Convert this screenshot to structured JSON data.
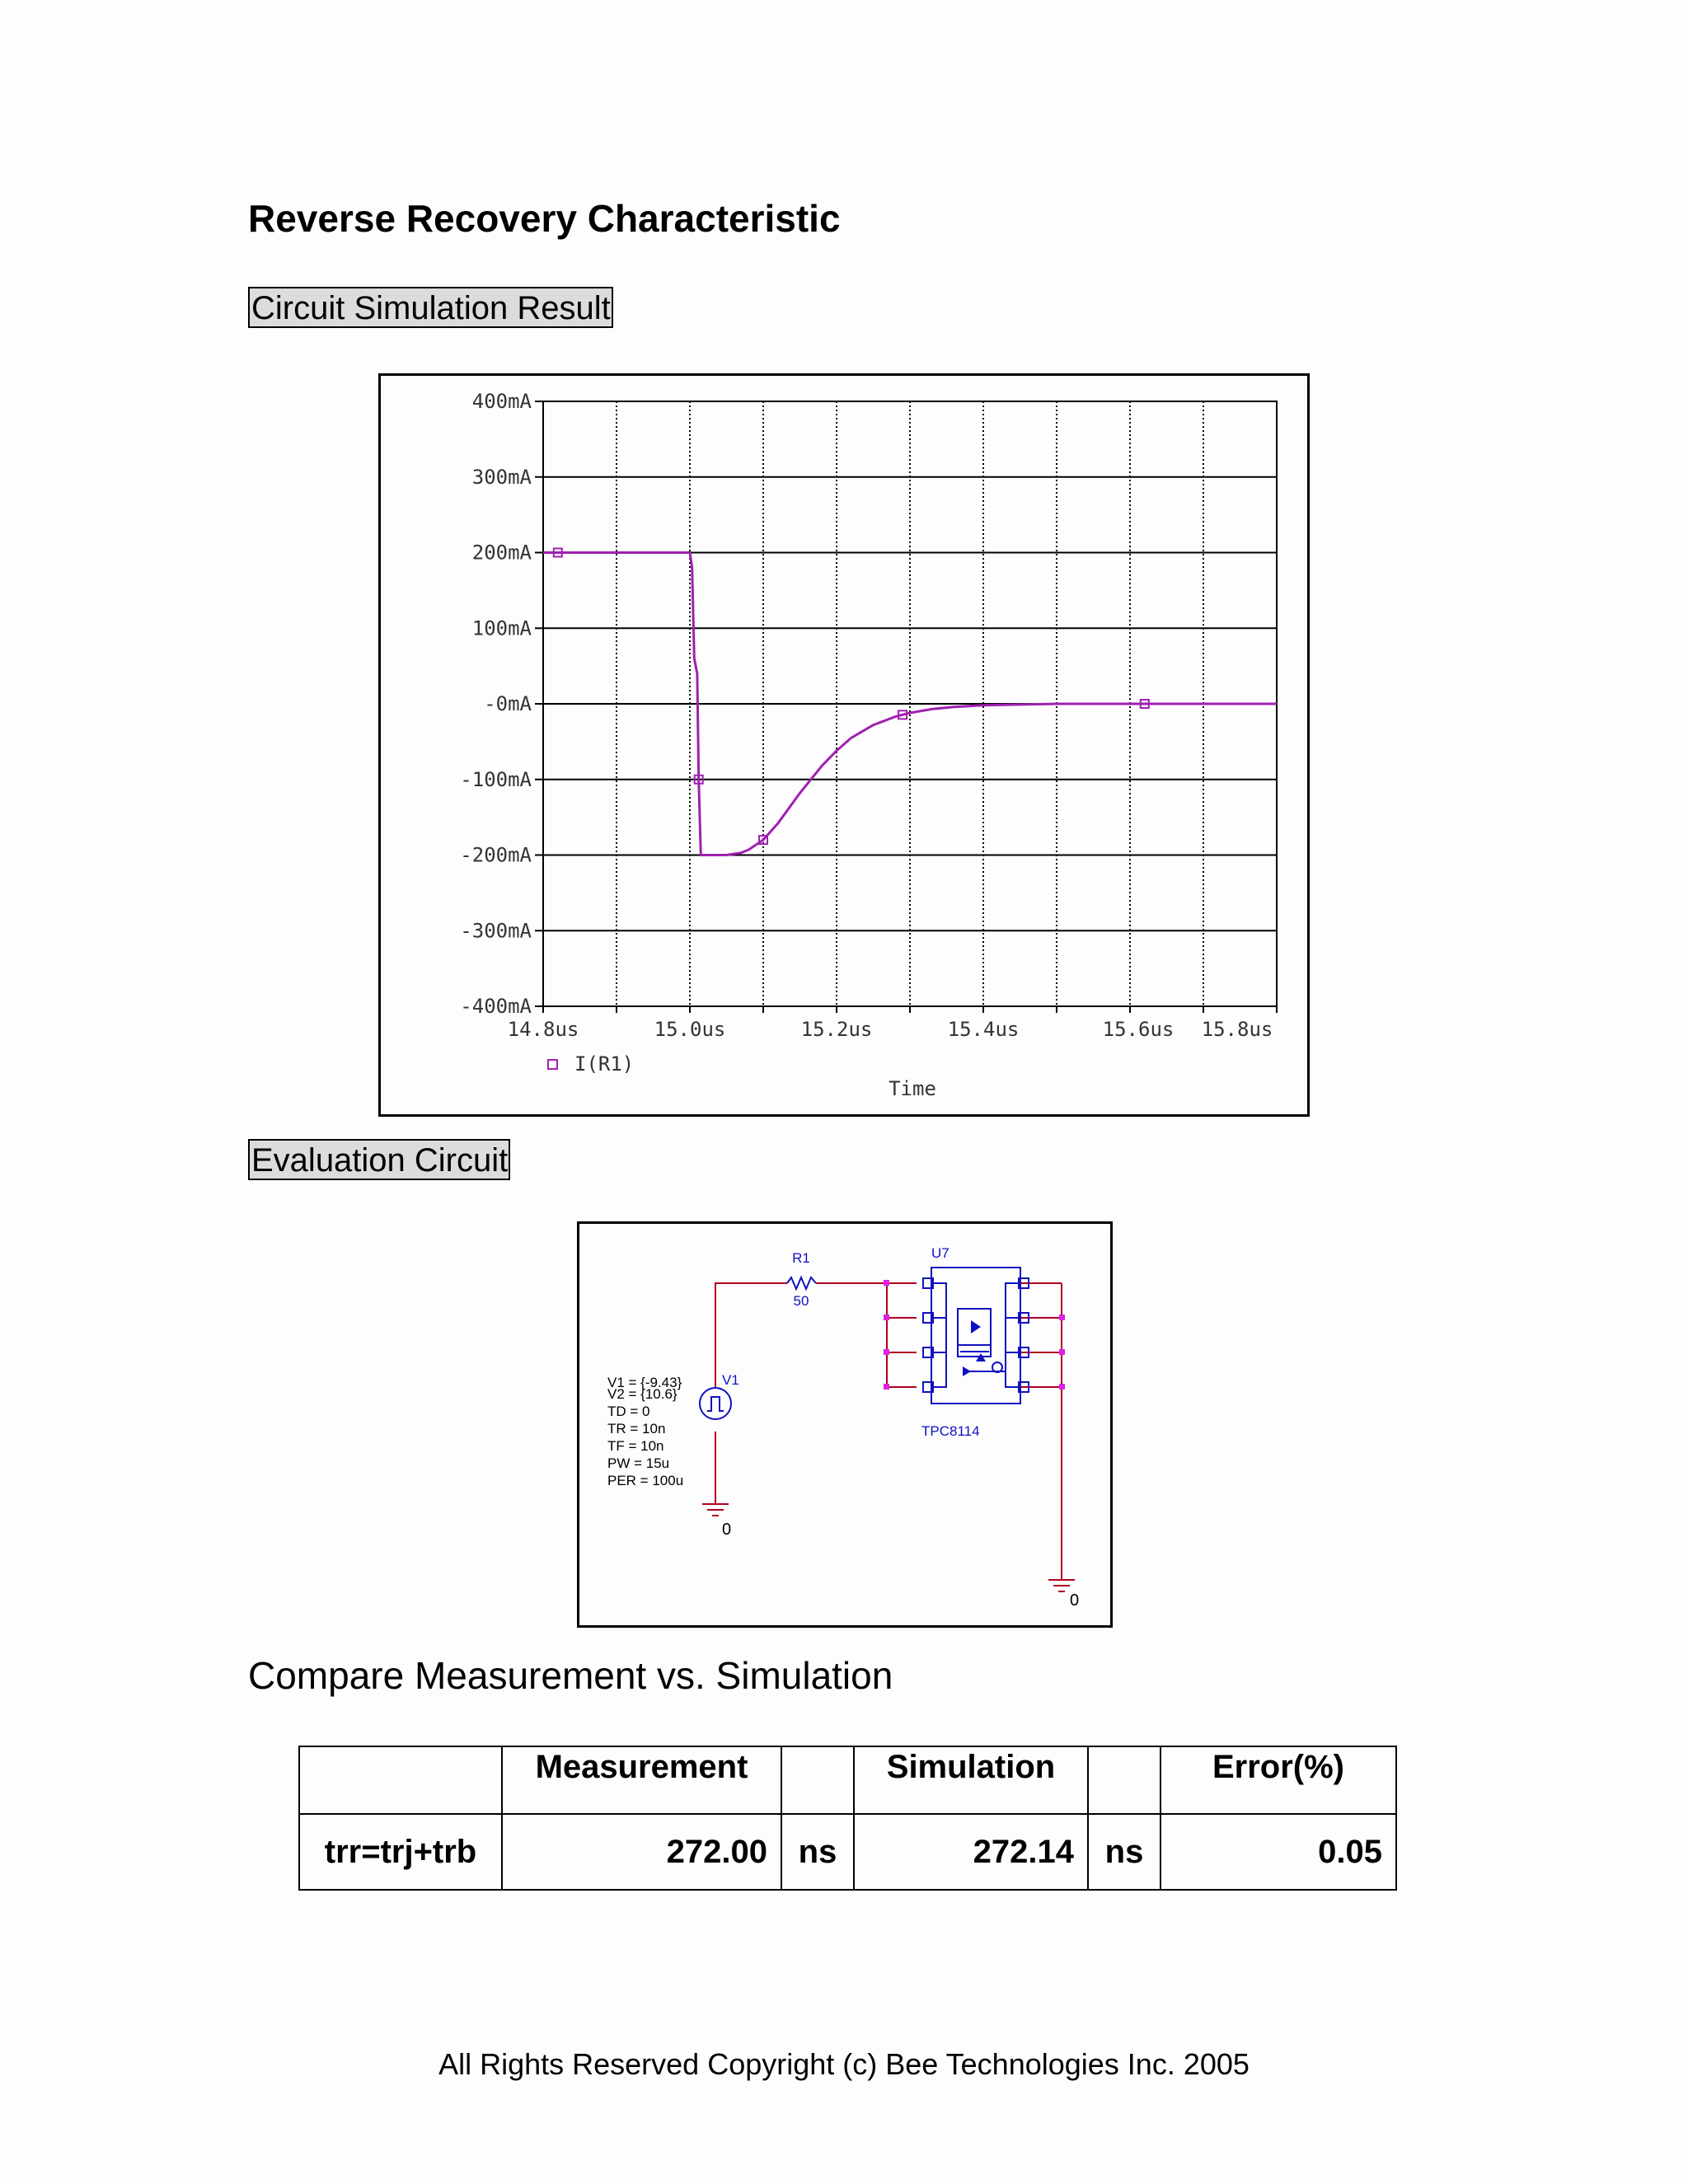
{
  "title": "Reverse Recovery Characteristic",
  "sections": {
    "simulation": "Circuit Simulation Result",
    "evaluation": "Evaluation Circuit",
    "compare": "Compare Measurement vs. Simulation"
  },
  "chart_data": {
    "type": "line",
    "xlabel": "Time",
    "ylabel": "",
    "x_ticks": [
      "14.8us",
      "15.0us",
      "15.2us",
      "15.4us",
      "15.6us",
      "15.8us"
    ],
    "y_ticks": [
      "400mA",
      "300mA",
      "200mA",
      "100mA",
      "-0mA",
      "-100mA",
      "-200mA",
      "-300mA",
      "-400mA"
    ],
    "xlim": [
      14.8,
      15.8
    ],
    "ylim": [
      -400,
      400
    ],
    "x_unit": "us",
    "y_unit": "mA",
    "grid": true,
    "legend_position": "bottom-left",
    "series": [
      {
        "name": "I(R1)",
        "color": "#a020b0",
        "marker": "square",
        "x": [
          14.8,
          15.0,
          15.003,
          15.006,
          15.01,
          15.012,
          15.015,
          15.05,
          15.07,
          15.08,
          15.1,
          15.12,
          15.15,
          15.18,
          15.2,
          15.22,
          15.25,
          15.28,
          15.3,
          15.33,
          15.36,
          15.4,
          15.45,
          15.5,
          15.6,
          15.8
        ],
        "values": [
          200,
          200,
          180,
          60,
          40,
          -100,
          -200,
          -200,
          -197,
          -193,
          -180,
          -158,
          -118,
          -82,
          -62,
          -45,
          -28,
          -17,
          -12,
          -7,
          -4,
          -2,
          -1,
          0,
          0,
          0
        ]
      }
    ]
  },
  "circuit": {
    "r1_name": "R1",
    "r1_value": "50",
    "u7_name": "U7",
    "part": "TPC8114",
    "v1_name": "V1",
    "v1_params": [
      "V1 = {-9.43}",
      "V2 = {10.6}",
      "TD = 0",
      "TR = 10n",
      "TF = 10n",
      "PW = 15u",
      "PER = 100u"
    ],
    "ground_label": "0"
  },
  "table": {
    "headers": [
      "",
      "Measurement",
      "",
      "Simulation",
      "",
      "Error(%)"
    ],
    "rows": [
      {
        "name": "trr=trj+trb",
        "measurement": "272.00",
        "meas_unit": "ns",
        "simulation": "272.14",
        "sim_unit": "ns",
        "error": "0.05"
      }
    ]
  },
  "footer": "All Rights Reserved Copyright (c) Bee Technologies Inc. 2005"
}
